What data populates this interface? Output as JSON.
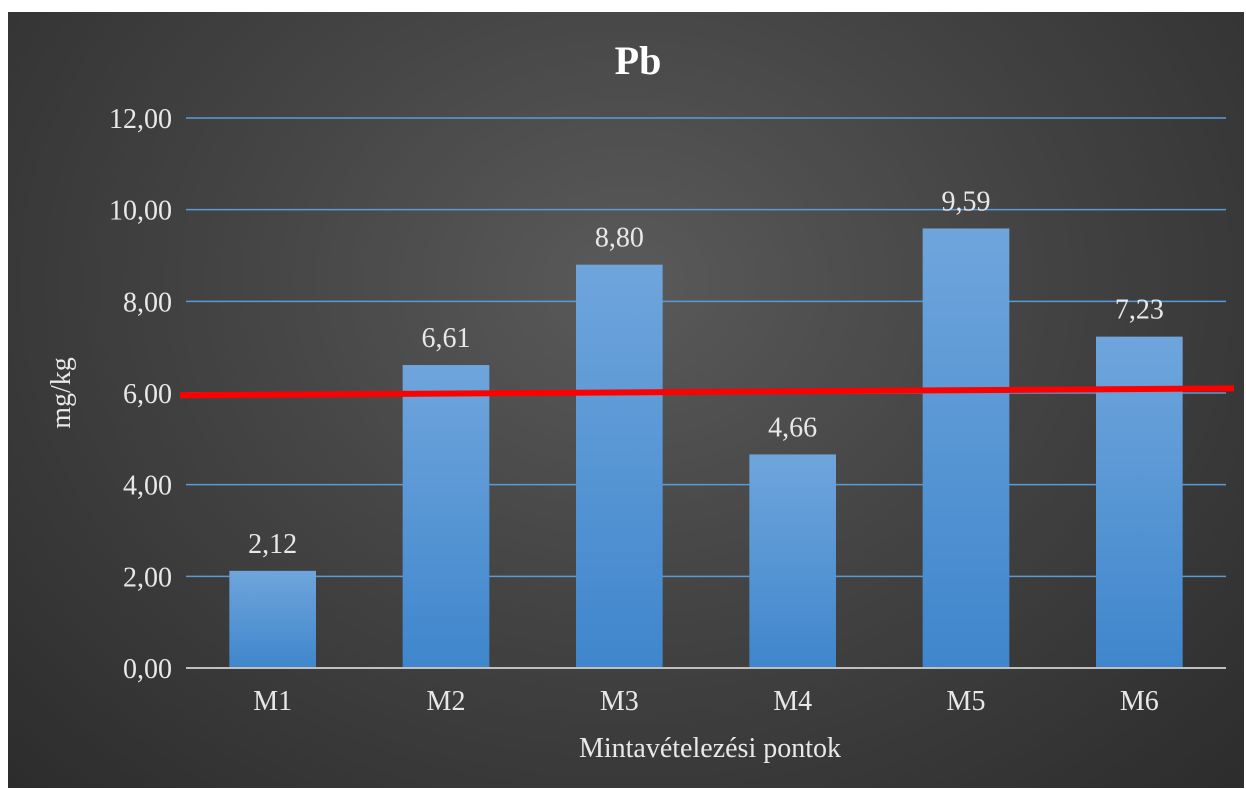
{
  "chart_data": {
    "type": "bar",
    "title": "Pb",
    "xlabel": "Mintavételezési pontok",
    "ylabel": "mg/kg",
    "categories": [
      "M1",
      "M2",
      "M3",
      "M4",
      "M5",
      "M6"
    ],
    "values": [
      2.12,
      6.61,
      8.8,
      4.66,
      9.59,
      7.23
    ],
    "data_labels": [
      "2,12",
      "6,61",
      "8,80",
      "4,66",
      "9,59",
      "7,23"
    ],
    "ylim": [
      0,
      12
    ],
    "yticks": [
      0,
      2,
      4,
      6,
      8,
      10,
      12
    ],
    "ytick_labels": [
      "0,00",
      "2,00",
      "4,00",
      "6,00",
      "8,00",
      "10,00",
      "12,00"
    ],
    "grid": true,
    "legend": "none",
    "reference_line": {
      "y_start": 5.95,
      "y_end": 6.1,
      "color": "#ff0000"
    },
    "colors": {
      "bar_top": "#6fa5dc",
      "bar_bottom": "#3f86cc",
      "gridline": "#5b9bd5",
      "axis": "#bfbfbf",
      "text": "#ffffff",
      "label_text": "#e8e8e8"
    }
  }
}
